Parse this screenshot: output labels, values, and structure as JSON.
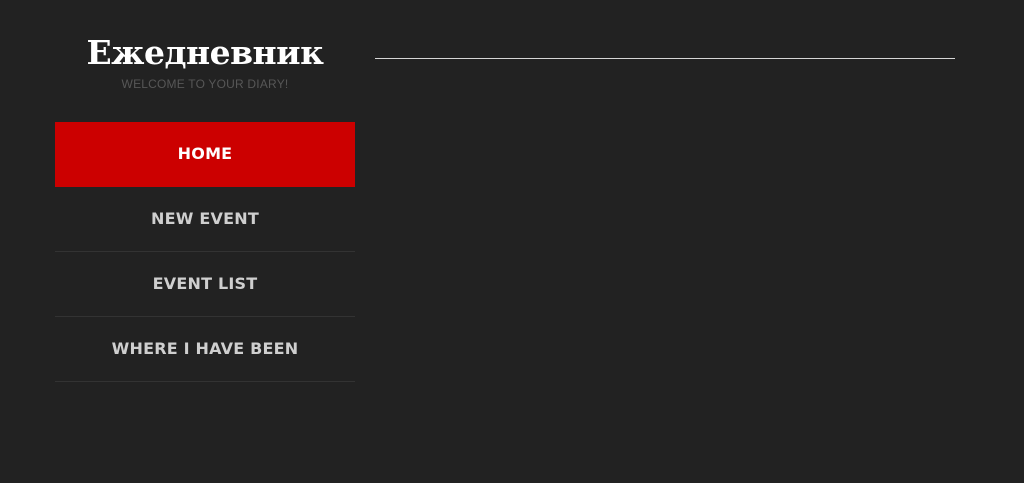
{
  "site": {
    "title": "Ежедневник",
    "tagline": "WELCOME TO YOUR DIARY!"
  },
  "nav": {
    "items": [
      {
        "label": "HOME",
        "active": true
      },
      {
        "label": "NEW EVENT",
        "active": false
      },
      {
        "label": "EVENT LIST",
        "active": false
      },
      {
        "label": "WHERE I HAVE BEEN",
        "active": false
      }
    ]
  },
  "colors": {
    "background": "#222222",
    "accent": "#cc0000",
    "nav_text": "#cfcfcf",
    "divider": "#333333",
    "tagline": "#575757"
  }
}
